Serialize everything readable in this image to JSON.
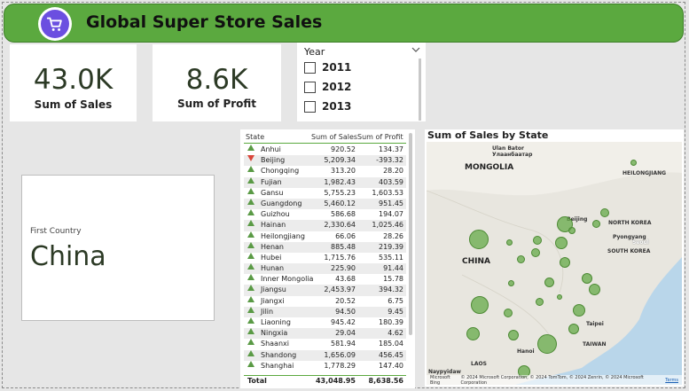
{
  "header": {
    "title": "Global Super Store Sales"
  },
  "kpis": {
    "sales": {
      "value": "43.0K",
      "label": "Sum of Sales"
    },
    "profit": {
      "value": "8.6K",
      "label": "Sum of Profit"
    }
  },
  "slicer": {
    "title": "Year",
    "items": [
      "2011",
      "2012",
      "2013"
    ]
  },
  "country_card": {
    "label": "First Country",
    "value": "China"
  },
  "table": {
    "columns": [
      "State",
      "Sum of Sales",
      "Sum of Profit"
    ],
    "rows": [
      {
        "state": "Anhui",
        "sales": "920.52",
        "profit": "134.37",
        "trend": "up"
      },
      {
        "state": "Beijing",
        "sales": "5,209.34",
        "profit": "-393.32",
        "trend": "down"
      },
      {
        "state": "Chongqing",
        "sales": "313.20",
        "profit": "28.20",
        "trend": "up"
      },
      {
        "state": "Fujian",
        "sales": "1,982.43",
        "profit": "403.59",
        "trend": "up"
      },
      {
        "state": "Gansu",
        "sales": "5,755.23",
        "profit": "1,603.53",
        "trend": "up"
      },
      {
        "state": "Guangdong",
        "sales": "5,460.12",
        "profit": "951.45",
        "trend": "up"
      },
      {
        "state": "Guizhou",
        "sales": "586.68",
        "profit": "194.07",
        "trend": "up"
      },
      {
        "state": "Hainan",
        "sales": "2,330.64",
        "profit": "1,025.46",
        "trend": "up"
      },
      {
        "state": "Heilongjiang",
        "sales": "66.06",
        "profit": "28.26",
        "trend": "up"
      },
      {
        "state": "Henan",
        "sales": "885.48",
        "profit": "219.39",
        "trend": "up"
      },
      {
        "state": "Hubei",
        "sales": "1,715.76",
        "profit": "535.11",
        "trend": "up"
      },
      {
        "state": "Hunan",
        "sales": "225.90",
        "profit": "91.44",
        "trend": "up"
      },
      {
        "state": "Inner Mongolia",
        "sales": "43.68",
        "profit": "15.78",
        "trend": "up"
      },
      {
        "state": "Jiangsu",
        "sales": "2,453.97",
        "profit": "394.32",
        "trend": "up"
      },
      {
        "state": "Jiangxi",
        "sales": "20.52",
        "profit": "6.75",
        "trend": "up"
      },
      {
        "state": "Jilin",
        "sales": "94.50",
        "profit": "9.45",
        "trend": "up"
      },
      {
        "state": "Liaoning",
        "sales": "945.42",
        "profit": "180.39",
        "trend": "up"
      },
      {
        "state": "Ningxia",
        "sales": "29.04",
        "profit": "4.62",
        "trend": "up"
      },
      {
        "state": "Shaanxi",
        "sales": "581.94",
        "profit": "185.04",
        "trend": "up"
      },
      {
        "state": "Shandong",
        "sales": "1,656.09",
        "profit": "456.45",
        "trend": "up"
      },
      {
        "state": "Shanghai",
        "sales": "1,778.29",
        "profit": "147.40",
        "trend": "up"
      }
    ],
    "total": {
      "label": "Total",
      "sales": "43,048.95",
      "profit": "8,638.56"
    }
  },
  "map": {
    "title": "Sum of Sales by State",
    "labels": {
      "mongolia": "MONGOLIA",
      "ulaanbaatar": "Ulan Bator\nУлаанбаатар",
      "china": "CHINA",
      "beijing": "Beijing",
      "north_korea": "NORTH KOREA",
      "pyongyang": "Pyongyang",
      "seoul": "Seoul",
      "south_korea": "SOUTH KOREA",
      "taipei": "Taipei",
      "taiwan": "TAIWAN",
      "hanoi": "Hanoi",
      "laos": "LAOS",
      "naypyidaw": "Naypyidaw",
      "heilongjiang": "HEILONGJIANG"
    },
    "attribution": "© 2024 Microsoft Corporation, © 2024 TomTom, © 2024 Zenrin, © 2024 Microsoft Corporation",
    "terms": "Terms",
    "bing": "Microsoft Bing"
  },
  "colors": {
    "accent": "#5ba93f",
    "bubble": "#65aa48",
    "negative": "#d9463a"
  }
}
